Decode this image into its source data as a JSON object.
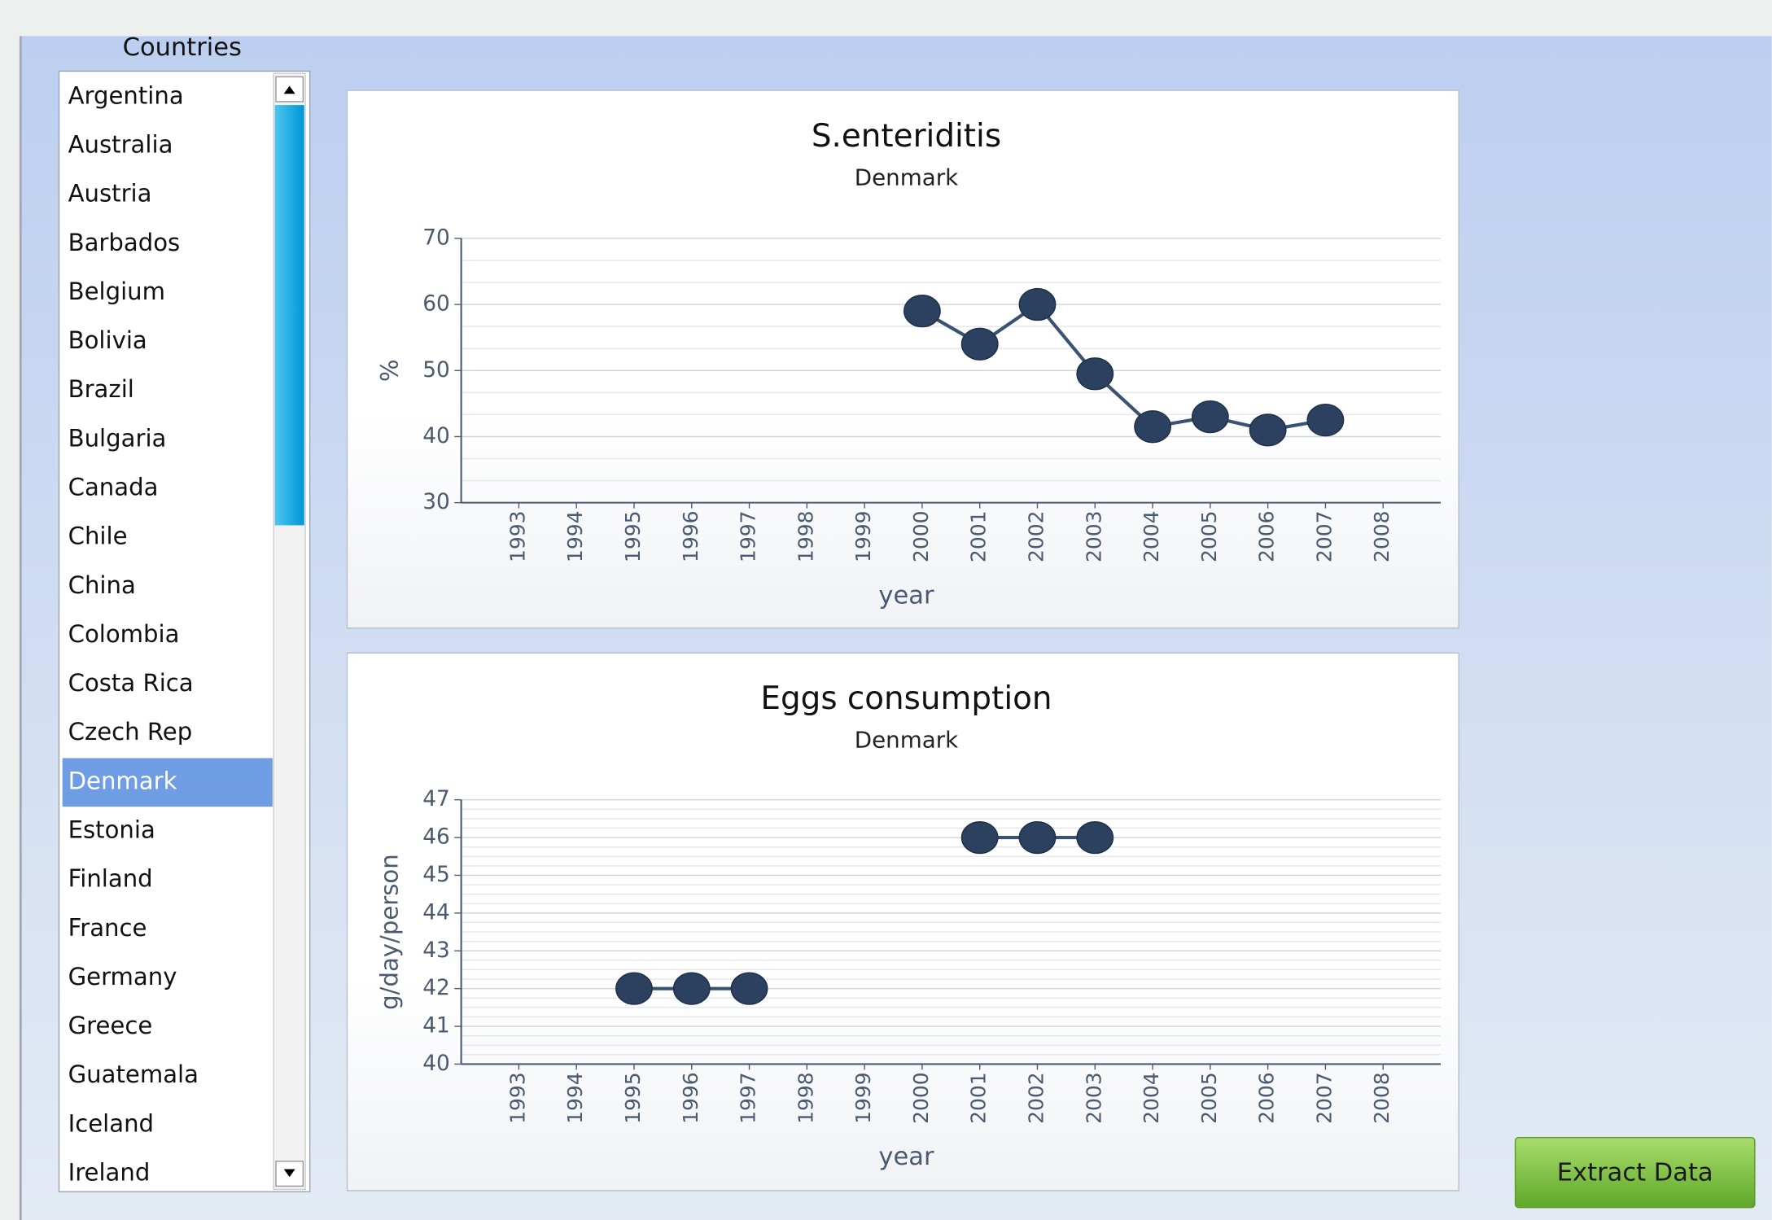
{
  "country_list": {
    "title": "Countries",
    "selected": "Denmark",
    "items": [
      "Argentina",
      "Australia",
      "Austria",
      "Barbados",
      "Belgium",
      "Bolivia",
      "Brazil",
      "Bulgaria",
      "Canada",
      "Chile",
      "China",
      "Colombia",
      "Costa Rica",
      "Czech Rep",
      "Denmark",
      "Estonia",
      "Finland",
      "France",
      "Germany",
      "Greece",
      "Guatemala",
      "Iceland",
      "Ireland"
    ]
  },
  "chart_data": [
    {
      "type": "line",
      "title": "S.enteriditis",
      "subtitle": "Denmark",
      "x_label": "year",
      "y_label": "%",
      "x": [
        1993,
        1994,
        1995,
        1996,
        1997,
        1998,
        1999,
        2000,
        2001,
        2002,
        2003,
        2004,
        2005,
        2006,
        2007,
        2008
      ],
      "xlim": [
        1992,
        2009
      ],
      "xticks": [
        1993,
        1994,
        1995,
        1996,
        1997,
        1998,
        1999,
        2000,
        2001,
        2002,
        2003,
        2004,
        2005,
        2006,
        2007,
        2008
      ],
      "ylim": [
        30,
        70
      ],
      "yticks": [
        30,
        40,
        50,
        60,
        70
      ],
      "grid": true,
      "color": "#2c4160",
      "values": [
        null,
        null,
        null,
        null,
        null,
        null,
        null,
        59,
        54,
        60,
        49.5,
        41.5,
        43,
        41,
        42.5,
        null
      ]
    },
    {
      "type": "line",
      "title": "Eggs consumption",
      "subtitle": "Denmark",
      "x_label": "year",
      "y_label": "g/day/person",
      "x": [
        1993,
        1994,
        1995,
        1996,
        1997,
        1998,
        1999,
        2000,
        2001,
        2002,
        2003,
        2004,
        2005,
        2006,
        2007,
        2008
      ],
      "xlim": [
        1992,
        2009
      ],
      "xticks": [
        1993,
        1994,
        1995,
        1996,
        1997,
        1998,
        1999,
        2000,
        2001,
        2002,
        2003,
        2004,
        2005,
        2006,
        2007,
        2008
      ],
      "ylim": [
        40,
        47
      ],
      "yticks": [
        40,
        41,
        42,
        43,
        44,
        45,
        46,
        47
      ],
      "grid": true,
      "color": "#2c4160",
      "values": [
        null,
        null,
        42,
        42,
        42,
        null,
        null,
        null,
        46,
        46,
        46,
        null,
        null,
        null,
        null,
        null
      ]
    }
  ],
  "button": {
    "label": "Extract Data"
  }
}
